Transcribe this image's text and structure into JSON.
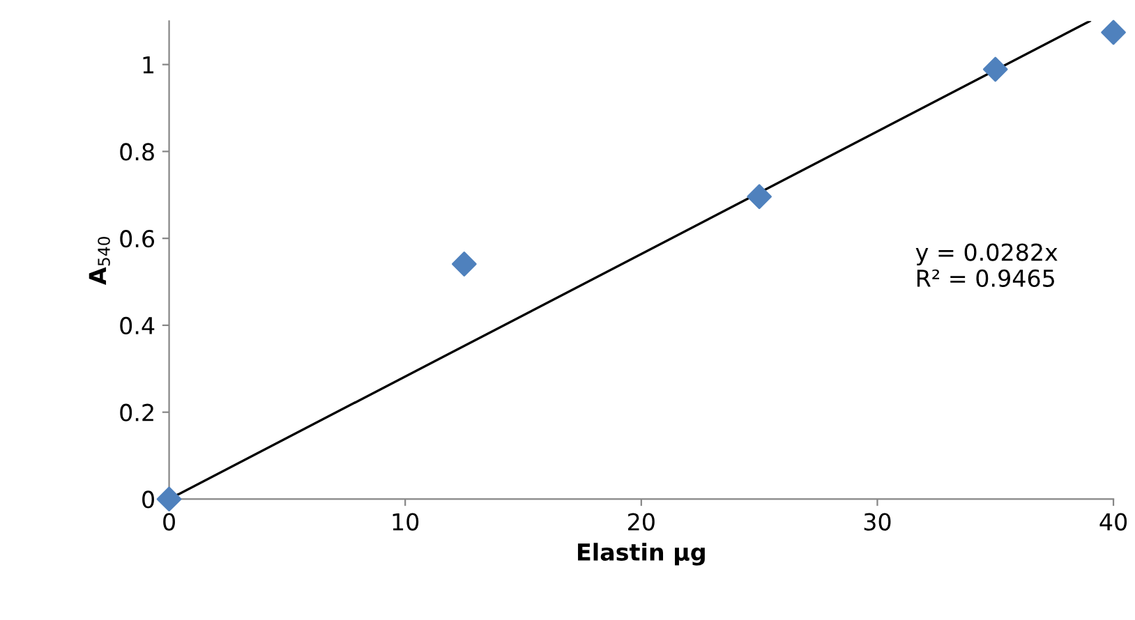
{
  "chart_data": {
    "type": "scatter",
    "xlabel": "Elastin µg",
    "ylabel": "A$_{540}$",
    "series": [
      {
        "color": "#4f81bd",
        "marker": "diamond",
        "x": [
          0,
          12.5,
          25,
          35,
          40
        ],
        "values": [
          0,
          0.541,
          0.696,
          0.989,
          1.074
        ]
      },
      {
        "type": "line",
        "color": "#000000",
        "marker": "none",
        "line_style": "solid",
        "x": [
          0,
          39.0
        ],
        "values": [
          0,
          1.1
        ]
      }
    ],
    "annotations": [
      "y = 0.0282x\nR² = 0.9465"
    ],
    "xlim": [
      0,
      40
    ],
    "ylim": [
      0,
      1.1
    ],
    "xticks": [
      0,
      10,
      20,
      30,
      40
    ],
    "yticks": [
      0,
      0.2,
      0.4,
      0.6,
      0.8,
      1
    ],
    "grid": false,
    "legend": false
  }
}
